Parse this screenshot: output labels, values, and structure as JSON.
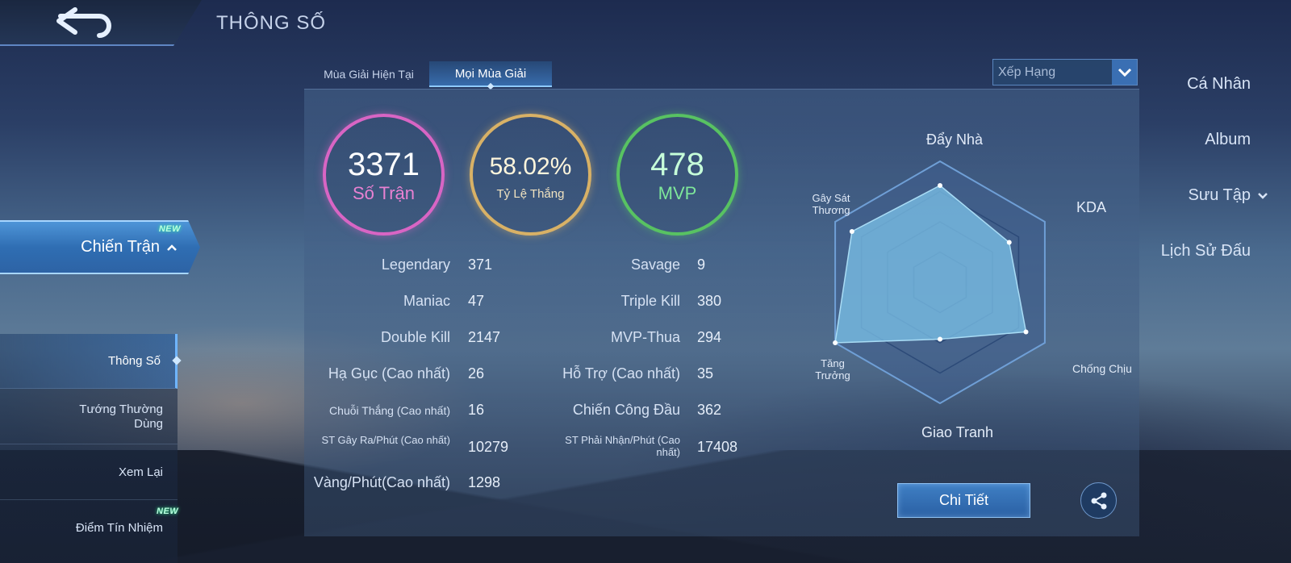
{
  "header": {
    "title": "THÔNG SỐ",
    "back_icon": "back-arrow-icon"
  },
  "sidebar": {
    "items": [
      {
        "label": "Cá Nhân"
      },
      {
        "label": "Album"
      },
      {
        "label": "Sưu Tập"
      },
      {
        "label": "Lịch Sử Đấu"
      },
      {
        "label": "Chiến Trận",
        "badge": "NEW"
      }
    ],
    "sub_items": [
      {
        "label": "Thông Số"
      },
      {
        "label": "Tướng Thường Dùng"
      },
      {
        "label": "Xem Lại"
      },
      {
        "label": "Điểm Tín Nhiệm",
        "badge": "NEW"
      }
    ]
  },
  "tabs": [
    {
      "label": "Mùa Giải Hiện Tại"
    },
    {
      "label": "Mọi Mùa Giải"
    }
  ],
  "dropdown": {
    "value": "Xếp Hạng"
  },
  "summary": {
    "matches": {
      "value": "3371",
      "label": "Số Trận"
    },
    "winrate": {
      "value": "58.02%",
      "label": "Tỷ Lệ Thắng"
    },
    "mvp": {
      "value": "478",
      "label": "MVP"
    }
  },
  "stats_left": [
    {
      "label": "Legendary",
      "value": "371"
    },
    {
      "label": "Maniac",
      "value": "47"
    },
    {
      "label": "Double Kill",
      "value": "2147"
    },
    {
      "label": "Hạ Gục (Cao nhất)",
      "value": "26"
    },
    {
      "label": "Chuỗi Thắng (Cao nhất)",
      "value": "16"
    },
    {
      "label": "ST Gây Ra/Phút (Cao nhất)",
      "value": "10279"
    },
    {
      "label": "Vàng/Phút(Cao nhất)",
      "value": "1298"
    }
  ],
  "stats_right": [
    {
      "label": "Savage",
      "value": "9"
    },
    {
      "label": "Triple Kill",
      "value": "380"
    },
    {
      "label": "MVP-Thua",
      "value": "294"
    },
    {
      "label": "Hỗ Trợ (Cao nhất)",
      "value": "35"
    },
    {
      "label": "Chiến Công Đầu",
      "value": "362"
    },
    {
      "label": "ST Phải Nhận/Phút (Cao nhất)",
      "value": "17408"
    }
  ],
  "radar": {
    "labels": {
      "push": "Đẩy Nhà",
      "kda": "KDA",
      "tank": "Chống Chịu",
      "teamfight": "Giao Tranh",
      "growth": "Tăng Trưởng",
      "damage": "Gây Sát Thương"
    },
    "values": {
      "push": 0.8,
      "kda": 0.66,
      "tank": 0.82,
      "teamfight": 0.47,
      "growth": 1.0,
      "damage": 0.84
    },
    "fill_color": "#7cc3ea"
  },
  "actions": {
    "detail_label": "Chi Tiết",
    "share_icon": "share-icon"
  }
}
